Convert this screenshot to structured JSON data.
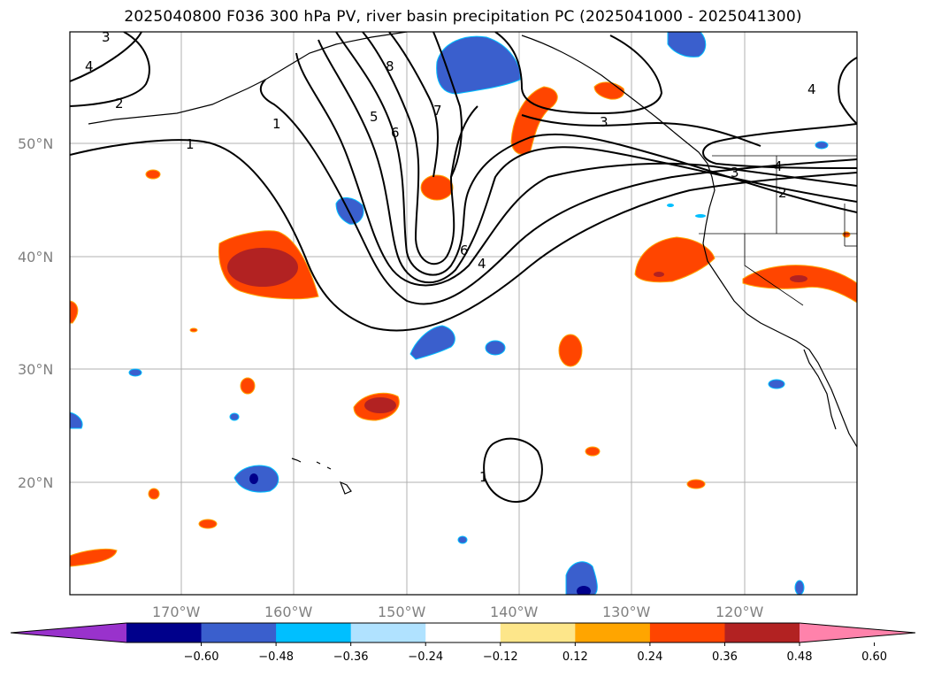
{
  "title": "2025040800 F036 300 hPa PV, river basin precipitation PC (2025041000 - 2025041300)",
  "lat_labels": [
    "50°N",
    "40°N",
    "30°N",
    "20°N"
  ],
  "lon_labels": [
    "170°W",
    "160°W",
    "150°W",
    "140°W",
    "130°W",
    "120°W"
  ],
  "contour_labels": [
    "3",
    "4",
    "2",
    "1",
    "1",
    "5",
    "6",
    "7",
    "8",
    "3",
    "4",
    "2",
    "3",
    "6",
    "4",
    "1",
    "4"
  ],
  "colorbar": {
    "ticks": [
      "−0.60",
      "−0.48",
      "−0.36",
      "−0.24",
      "−0.12",
      "0.12",
      "0.24",
      "0.36",
      "0.48",
      "0.60"
    ],
    "colors": [
      "#9932cc",
      "#00008b",
      "#3a5fcd",
      "#00bfff",
      "#b0e2ff",
      "#ffffff",
      "#fde68a",
      "#ffa500",
      "#ff4500",
      "#b22222",
      "#ff82ab"
    ]
  }
}
